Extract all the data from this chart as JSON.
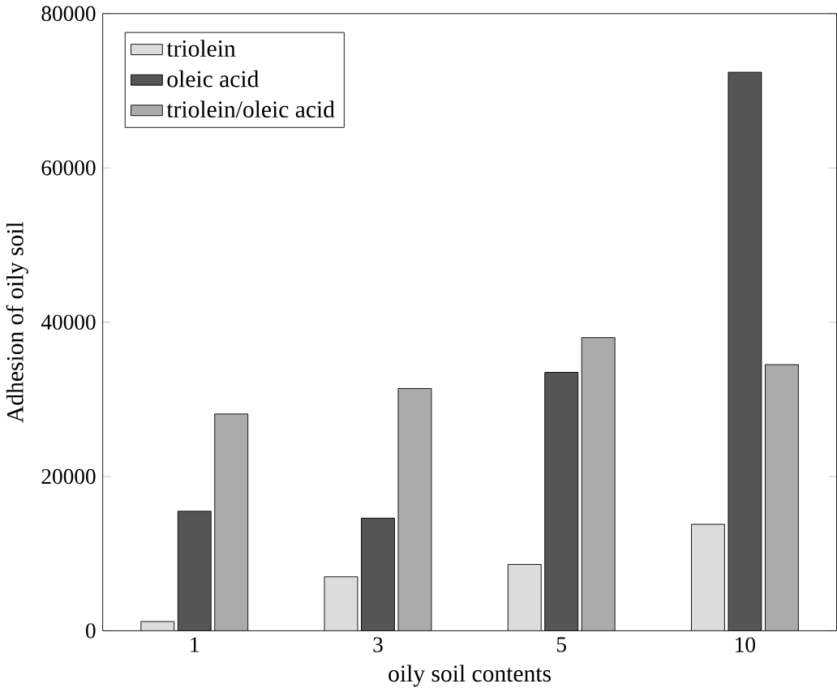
{
  "chart_data": {
    "type": "bar",
    "xlabel": "oily soil contents",
    "ylabel": "Adhesion of oily soil",
    "categories": [
      "1",
      "3",
      "5",
      "10"
    ],
    "series": [
      {
        "name": "triolein",
        "color": "#dcdcdc",
        "values": [
          1200,
          7000,
          8600,
          13800
        ]
      },
      {
        "name": "oleic acid",
        "color": "#555555",
        "values": [
          15500,
          14600,
          33500,
          72400
        ]
      },
      {
        "name": "triolein/oleic acid",
        "color": "#ababab",
        "values": [
          28100,
          31400,
          38000,
          34500
        ]
      }
    ],
    "ylim": [
      0,
      80000
    ],
    "yticks": [
      0,
      20000,
      40000,
      60000,
      80000
    ],
    "grid": false,
    "legend": "top left"
  }
}
